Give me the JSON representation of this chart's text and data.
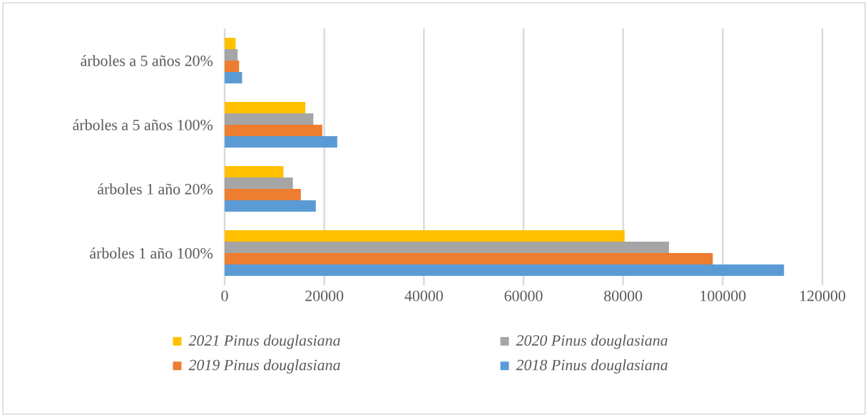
{
  "chart_data": {
    "type": "bar",
    "orientation": "horizontal",
    "categories": [
      "árboles a 5 años 20%",
      "árboles a 5 años 100%",
      "árboles 1 año 20%",
      "árboles 1 año 100%"
    ],
    "series": [
      {
        "name": "2021 Pinus douglasiana",
        "color": "#ffc000",
        "values": [
          2200,
          16200,
          11800,
          80300
        ]
      },
      {
        "name": "2020 Pinus douglasiana",
        "color": "#a5a5a5",
        "values": [
          2600,
          17800,
          13700,
          89200
        ]
      },
      {
        "name": "2019 Pinus douglasiana",
        "color": "#ed7d31",
        "values": [
          2900,
          19600,
          15300,
          98000
        ]
      },
      {
        "name": "2018 Pinus douglasiana",
        "color": "#5b9bd5",
        "values": [
          3500,
          22600,
          18300,
          112300
        ]
      }
    ],
    "xlim": [
      0,
      120000
    ],
    "xticks": [
      0,
      20000,
      40000,
      60000,
      80000,
      100000,
      120000
    ],
    "grid": "x",
    "legend": "bottom"
  }
}
